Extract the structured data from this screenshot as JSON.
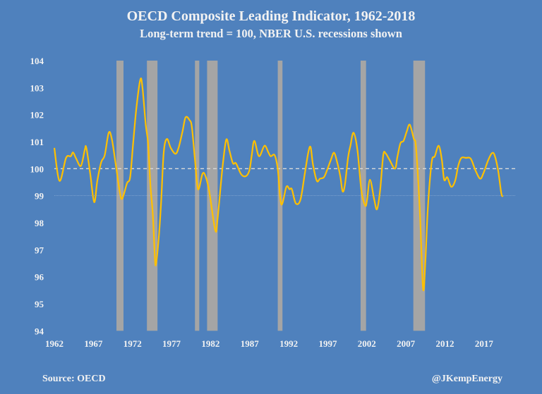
{
  "chart_data": {
    "type": "line",
    "title": "OECD Composite Leading Indicator, 1962-2018",
    "subtitle": "Long-term trend = 100, NBER U.S. recessions shown",
    "xlabel": "",
    "ylabel": "",
    "xlim": [
      1962,
      2021
    ],
    "ylim": [
      94,
      104
    ],
    "x_ticks": [
      "1962",
      "1967",
      "1972",
      "1977",
      "1982",
      "1987",
      "1992",
      "1997",
      "2002",
      "2007",
      "2012",
      "2017"
    ],
    "y_ticks": [
      "94",
      "95",
      "96",
      "97",
      "98",
      "99",
      "100",
      "101",
      "102",
      "103",
      "104"
    ],
    "grid": false,
    "reference_line": 100,
    "colors": {
      "background": "#4f81bd",
      "line": "#ffc000",
      "recession": "#a5a5a5",
      "reference": "#d9d9d9"
    },
    "recessions": [
      [
        1969.95,
        1970.85
      ],
      [
        1973.85,
        1975.2
      ],
      [
        1980.0,
        1980.55
      ],
      [
        1981.55,
        1982.9
      ],
      [
        1990.6,
        1991.2
      ],
      [
        2001.2,
        2001.9
      ],
      [
        2007.95,
        2009.45
      ]
    ],
    "series": [
      {
        "points": [
          [
            1962.0,
            100.77
          ],
          [
            1962.66,
            99.55
          ],
          [
            1963.5,
            100.4
          ],
          [
            1964.1,
            100.46
          ],
          [
            1964.4,
            100.6
          ],
          [
            1964.8,
            100.37
          ],
          [
            1965.4,
            100.1
          ],
          [
            1965.9,
            100.7
          ],
          [
            1966.1,
            100.77
          ],
          [
            1966.6,
            99.8
          ],
          [
            1967.1,
            98.76
          ],
          [
            1967.5,
            99.55
          ],
          [
            1968.0,
            100.24
          ],
          [
            1968.45,
            100.5
          ],
          [
            1968.96,
            101.33
          ],
          [
            1969.35,
            101.11
          ],
          [
            1969.86,
            100.16
          ],
          [
            1970.4,
            99.1
          ],
          [
            1970.7,
            98.9
          ],
          [
            1971.3,
            99.46
          ],
          [
            1971.7,
            99.68
          ],
          [
            1972.06,
            100.85
          ],
          [
            1972.5,
            102.24
          ],
          [
            1973.0,
            103.29
          ],
          [
            1973.27,
            103.03
          ],
          [
            1973.7,
            101.63
          ],
          [
            1974.0,
            100.94
          ],
          [
            1974.3,
            99.37
          ],
          [
            1974.6,
            98.33
          ],
          [
            1974.86,
            96.77
          ],
          [
            1975.0,
            96.46
          ],
          [
            1975.37,
            97.46
          ],
          [
            1975.67,
            98.77
          ],
          [
            1976.0,
            100.6
          ],
          [
            1976.4,
            101.1
          ],
          [
            1976.9,
            100.77
          ],
          [
            1977.5,
            100.55
          ],
          [
            1977.9,
            100.77
          ],
          [
            1978.4,
            101.37
          ],
          [
            1978.8,
            101.9
          ],
          [
            1979.3,
            101.8
          ],
          [
            1979.6,
            101.55
          ],
          [
            1980.0,
            100.33
          ],
          [
            1980.4,
            99.24
          ],
          [
            1980.95,
            99.8
          ],
          [
            1981.3,
            99.76
          ],
          [
            1981.8,
            99.2
          ],
          [
            1982.6,
            97.72
          ],
          [
            1982.9,
            98.16
          ],
          [
            1983.5,
            99.98
          ],
          [
            1984.0,
            101.07
          ],
          [
            1984.4,
            100.68
          ],
          [
            1984.86,
            100.2
          ],
          [
            1985.25,
            100.2
          ],
          [
            1985.9,
            99.8
          ],
          [
            1986.5,
            99.72
          ],
          [
            1986.97,
            99.94
          ],
          [
            1987.27,
            100.5
          ],
          [
            1987.6,
            101.03
          ],
          [
            1988.2,
            100.46
          ],
          [
            1988.9,
            100.85
          ],
          [
            1989.4,
            100.6
          ],
          [
            1989.7,
            100.46
          ],
          [
            1990.2,
            100.5
          ],
          [
            1990.6,
            99.98
          ],
          [
            1991.05,
            98.68
          ],
          [
            1991.7,
            99.33
          ],
          [
            1992.1,
            99.24
          ],
          [
            1992.4,
            99.24
          ],
          [
            1992.9,
            98.72
          ],
          [
            1993.5,
            98.85
          ],
          [
            1994.05,
            99.8
          ],
          [
            1994.5,
            100.59
          ],
          [
            1994.8,
            100.8
          ],
          [
            1995.1,
            100.16
          ],
          [
            1995.6,
            99.55
          ],
          [
            1996.0,
            99.63
          ],
          [
            1996.5,
            99.68
          ],
          [
            1996.9,
            99.94
          ],
          [
            1997.4,
            100.33
          ],
          [
            1997.8,
            100.59
          ],
          [
            1998.2,
            100.24
          ],
          [
            1998.6,
            99.72
          ],
          [
            1998.9,
            99.16
          ],
          [
            1999.2,
            99.42
          ],
          [
            1999.6,
            100.42
          ],
          [
            1999.9,
            100.85
          ],
          [
            2000.3,
            101.33
          ],
          [
            2000.8,
            100.68
          ],
          [
            2001.3,
            99.2
          ],
          [
            2001.8,
            98.63
          ],
          [
            2002.03,
            98.85
          ],
          [
            2002.4,
            99.59
          ],
          [
            2002.95,
            98.85
          ],
          [
            2003.3,
            98.5
          ],
          [
            2003.7,
            99.2
          ],
          [
            2004.1,
            100.5
          ],
          [
            2004.4,
            100.57
          ],
          [
            2004.9,
            100.33
          ],
          [
            2005.6,
            100.0
          ],
          [
            2005.9,
            100.42
          ],
          [
            2006.3,
            100.94
          ],
          [
            2006.7,
            101.03
          ],
          [
            2007.1,
            101.37
          ],
          [
            2007.5,
            101.63
          ],
          [
            2008.0,
            101.11
          ],
          [
            2008.3,
            100.77
          ],
          [
            2008.8,
            98.33
          ],
          [
            2009.2,
            95.55
          ],
          [
            2009.5,
            96.6
          ],
          [
            2009.8,
            98.5
          ],
          [
            2010.3,
            100.24
          ],
          [
            2010.7,
            100.46
          ],
          [
            2011.2,
            100.85
          ],
          [
            2011.6,
            100.33
          ],
          [
            2011.9,
            99.59
          ],
          [
            2012.3,
            99.68
          ],
          [
            2012.8,
            99.33
          ],
          [
            2013.3,
            99.55
          ],
          [
            2013.7,
            100.11
          ],
          [
            2014.1,
            100.4
          ],
          [
            2014.68,
            100.4
          ],
          [
            2015.3,
            100.37
          ],
          [
            2015.9,
            99.94
          ],
          [
            2016.5,
            99.63
          ],
          [
            2016.95,
            99.85
          ],
          [
            2017.5,
            100.29
          ],
          [
            2018.0,
            100.57
          ],
          [
            2018.35,
            100.5
          ],
          [
            2018.8,
            99.94
          ],
          [
            2019.2,
            99.11
          ],
          [
            2019.4,
            98.96
          ]
        ]
      }
    ]
  },
  "footer": {
    "source": "Source: OECD",
    "credit": "@JKempEnergy"
  }
}
